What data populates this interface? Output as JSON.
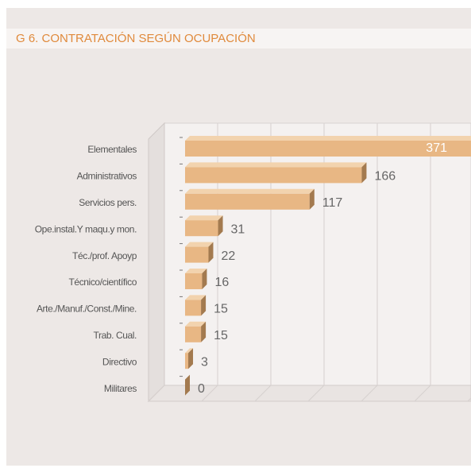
{
  "chart_data": {
    "type": "bar",
    "orientation": "horizontal",
    "title": "G 6. CONTRATACIÓN  SEGÚN OCUPACIÓN",
    "categories": [
      "Elementales",
      "Administrativos",
      "Servicios pers.",
      "Ope.instal.Y maqu.y mon.",
      "Téc./prof. Apoyp",
      "Técnico/científico",
      "Arte./Manuf./Const./Mine.",
      "Trab. Cual.",
      "Directivo",
      "Militares"
    ],
    "values": [
      371,
      166,
      117,
      31,
      22,
      16,
      15,
      15,
      3,
      0
    ],
    "color": "#e8b784",
    "xlim": [
      0,
      400
    ],
    "xticks": [
      0,
      50,
      100,
      150,
      200,
      250,
      300,
      350,
      400
    ],
    "grid": true
  }
}
